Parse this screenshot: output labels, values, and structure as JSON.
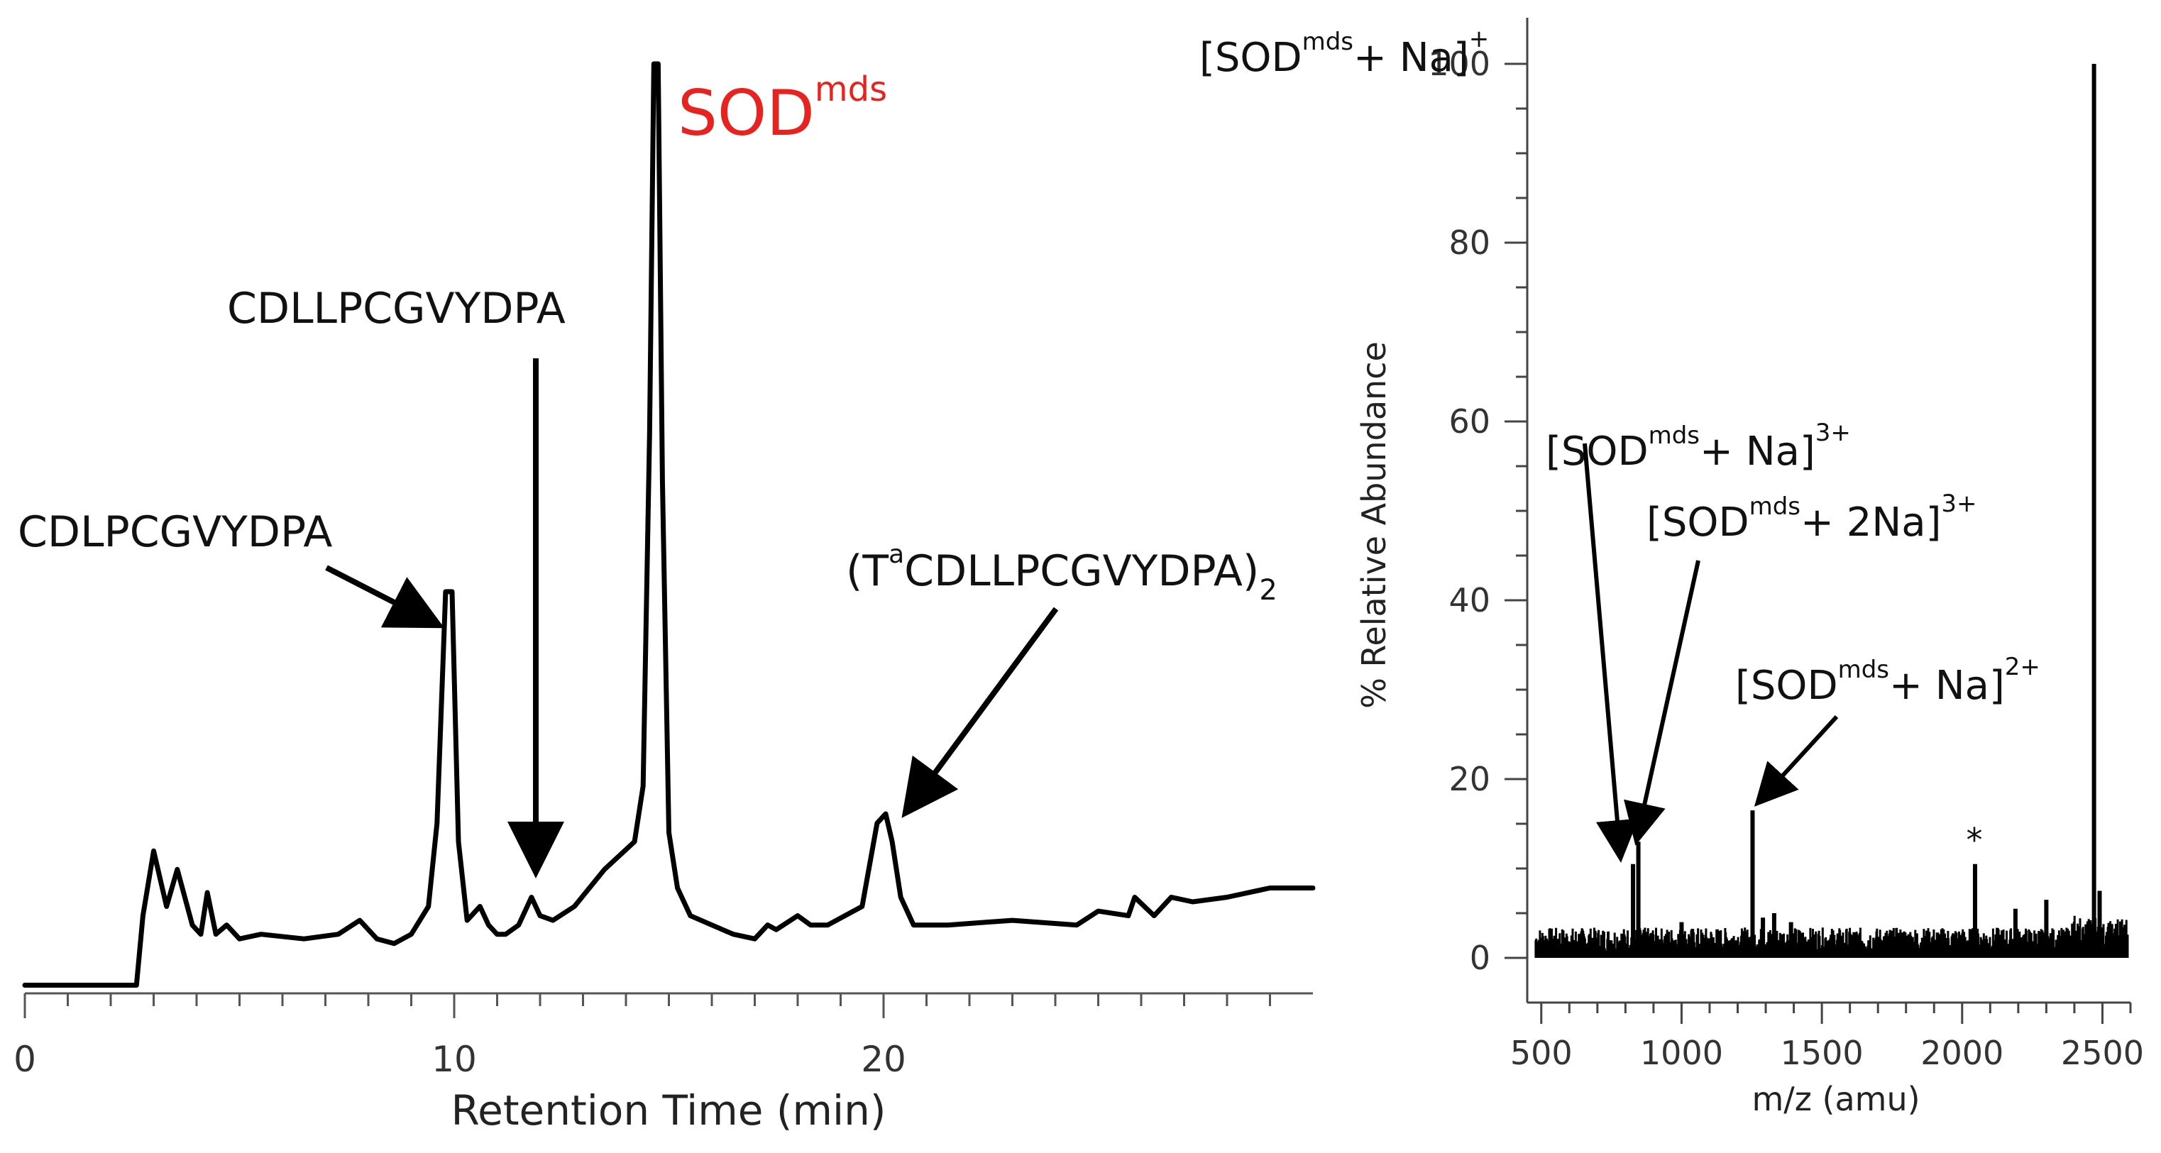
{
  "colors": {
    "ink": "#000000",
    "highlight": "#e8231f",
    "axis": "#444444"
  },
  "chart_data": [
    {
      "type": "line",
      "title": "",
      "xlabel": "Retention Time (min)",
      "ylabel": "",
      "xlim": [
        0,
        30
      ],
      "ylim": [
        0,
        100
      ],
      "xticks": [
        0,
        10,
        20
      ],
      "x": [
        0,
        2.6,
        2.75,
        3.0,
        3.3,
        3.55,
        3.9,
        4.1,
        4.25,
        4.45,
        4.7,
        5.0,
        5.5,
        6.5,
        7.3,
        7.8,
        8.2,
        8.6,
        9.0,
        9.4,
        9.6,
        9.8,
        9.95,
        10.1,
        10.3,
        10.6,
        10.8,
        11.0,
        11.2,
        11.5,
        11.8,
        12.0,
        12.3,
        12.8,
        13.5,
        14.2,
        14.4,
        14.55,
        14.65,
        14.75,
        14.85,
        15.0,
        15.2,
        15.5,
        16.0,
        16.5,
        17.0,
        17.3,
        17.5,
        18.0,
        18.3,
        18.7,
        19.5,
        19.85,
        20.05,
        20.2,
        20.4,
        20.7,
        21.5,
        23,
        24.5,
        25.0,
        25.7,
        25.85,
        26.3,
        26.7,
        27.2,
        28,
        29,
        30
      ],
      "values": [
        0.5,
        0.5,
        8,
        15,
        9,
        13,
        7,
        6,
        10.5,
        6,
        7,
        5.5,
        6,
        5.5,
        6,
        7.5,
        5.5,
        5,
        6,
        9,
        18,
        43,
        43,
        16,
        7.5,
        9,
        7,
        6,
        6,
        7,
        10,
        8,
        7.5,
        9,
        13,
        16,
        22,
        60,
        100,
        100,
        55,
        17,
        11,
        8,
        7,
        6,
        5.5,
        7,
        6.5,
        8,
        7,
        7,
        9,
        18,
        19,
        16,
        10,
        7,
        7,
        7.5,
        7,
        8.5,
        8,
        10,
        8,
        10,
        9.5,
        10,
        11,
        11
      ],
      "peak_labels": [
        {
          "text": "CDLPCGVYDPA",
          "x": 9.95
        },
        {
          "text": "CDLLPCGVYDPA",
          "x": 11.8
        },
        {
          "text": "SOD",
          "sup": "mds",
          "x": 14.7
        },
        {
          "text": "(T",
          "sup": "a",
          "tail": "CDLLPCGVYDPA)",
          "sub": "2",
          "x": 20.2
        }
      ]
    },
    {
      "type": "bar",
      "title": "",
      "xlabel": "m/z (amu)",
      "ylabel": "% Relative Abundance",
      "xlim": [
        450,
        2600
      ],
      "ylim": [
        0,
        105
      ],
      "xticks": [
        500,
        1000,
        1500,
        2000,
        2500
      ],
      "yticks": [
        0,
        20,
        40,
        60,
        80,
        100
      ],
      "peaks": [
        {
          "mz": 827,
          "value": 10.5
        },
        {
          "mz": 846,
          "value": 13
        },
        {
          "mz": 1000,
          "value": 4
        },
        {
          "mz": 1253,
          "value": 16.5
        },
        {
          "mz": 1290,
          "value": 4.5
        },
        {
          "mz": 1330,
          "value": 5
        },
        {
          "mz": 1390,
          "value": 4
        },
        {
          "mz": 2046,
          "value": 10.5
        },
        {
          "mz": 2190,
          "value": 5.5
        },
        {
          "mz": 2300,
          "value": 6.5
        },
        {
          "mz": 2470,
          "value": 100
        },
        {
          "mz": 2490,
          "value": 7.5
        }
      ],
      "noise_level": 2,
      "annotations": [
        {
          "text": "[SOD",
          "sup": "mds",
          "tail": "+ Na]",
          "charge": "+",
          "mz": 2470
        },
        {
          "text": "[SOD",
          "sup": "mds",
          "tail": "+ Na]",
          "charge": "3+",
          "mz": 827
        },
        {
          "text": "[SOD",
          "sup": "mds",
          "tail": "+ 2Na]",
          "charge": "3+",
          "mz": 846
        },
        {
          "text": "[SOD",
          "sup": "mds",
          "tail": "+ Na]",
          "charge": "2+",
          "mz": 1253
        }
      ],
      "asterisk": {
        "text": "*",
        "mz": 2046
      }
    }
  ]
}
